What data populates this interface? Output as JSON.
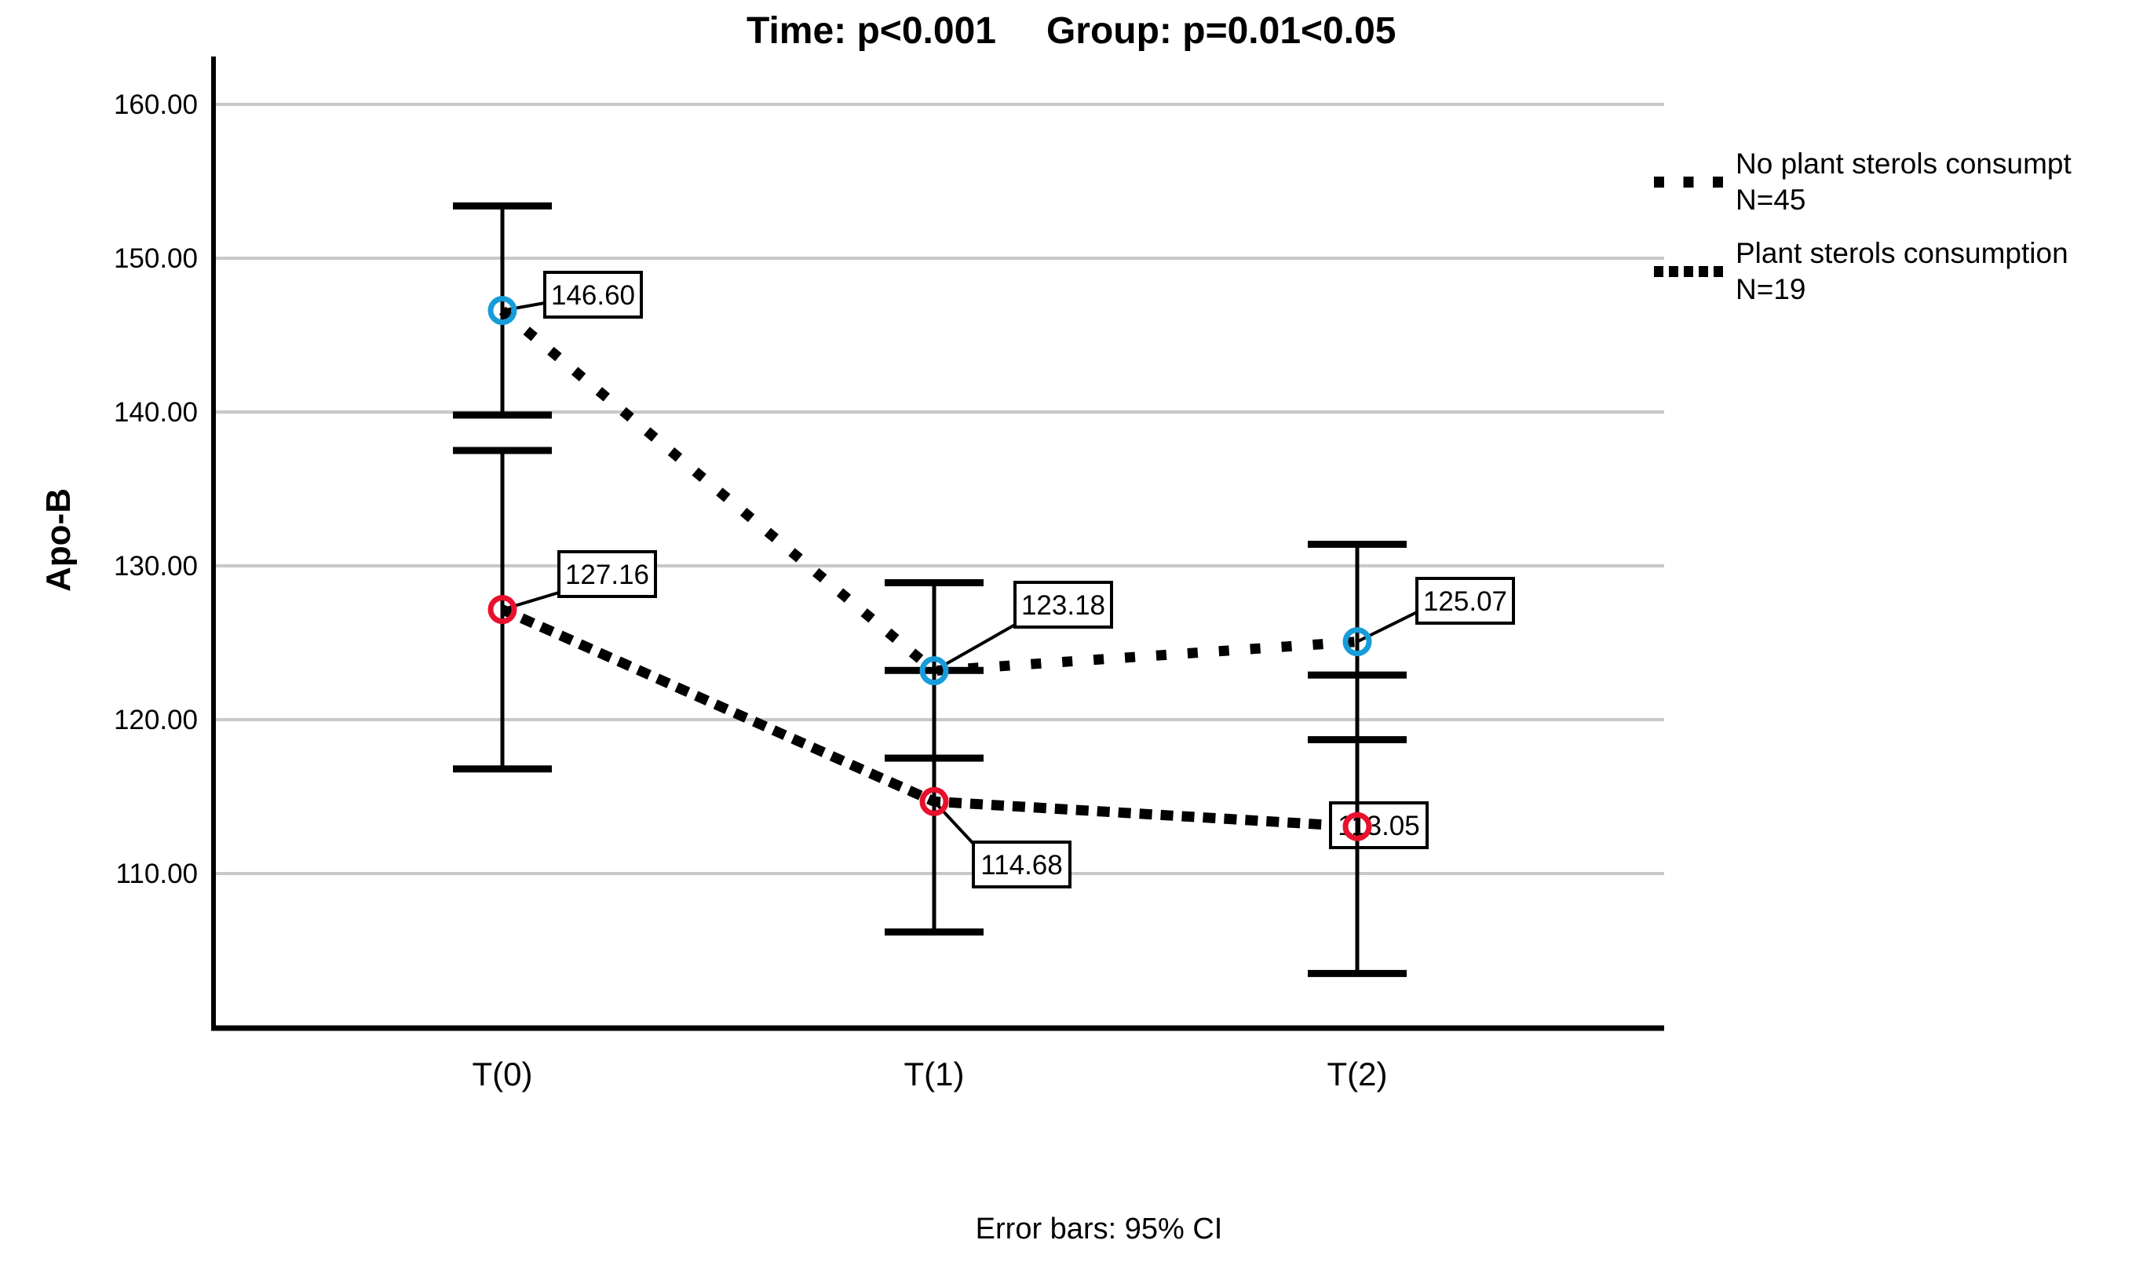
{
  "chart_data": {
    "type": "line",
    "title_parts": [
      "Time: p<0.001",
      "Group: p=0.01<0.05"
    ],
    "title": "Time: p<0.001    Group: p=0.01<0.05",
    "ylabel": "Apo-B",
    "caption": "Error bars: 95% CI",
    "error_bars": "95% CI",
    "grid": true,
    "legend_position": "right",
    "categories": [
      "T(0)",
      "T(1)",
      "T(2)"
    ],
    "y_ticks": [
      160,
      150,
      140,
      130,
      120,
      110
    ],
    "y_tick_labels": [
      "160.00",
      "150.00",
      "140.00",
      "130.00",
      "120.00",
      "110.00"
    ],
    "ylim": [
      100,
      163
    ],
    "series": [
      {
        "name": "No plant sterols consumpt",
        "n_label": "N=45",
        "line_style": "dotted",
        "line_color": "#000000",
        "marker_color": "#189CD9",
        "values": [
          146.6,
          123.18,
          125.07
        ],
        "point_labels": [
          "146.60",
          "123.18",
          "125.07"
        ],
        "ci_low": [
          139.8,
          117.5,
          118.7
        ],
        "ci_high": [
          153.4,
          128.9,
          131.4
        ]
      },
      {
        "name": "Plant sterols consumption",
        "n_label": "N=19",
        "line_style": "dashed-dense",
        "line_color": "#000000",
        "marker_color": "#E8112D",
        "values": [
          127.16,
          114.68,
          113.05
        ],
        "point_labels": [
          "127.16",
          "114.68",
          "113.05"
        ],
        "ci_low": [
          116.8,
          106.2,
          103.5
        ],
        "ci_high": [
          137.5,
          123.2,
          122.9
        ]
      }
    ],
    "colors": {
      "gridline": "#c8c8c8",
      "axis": "#000000",
      "series1_marker": "#189CD9",
      "series2_marker": "#E8112D"
    }
  }
}
